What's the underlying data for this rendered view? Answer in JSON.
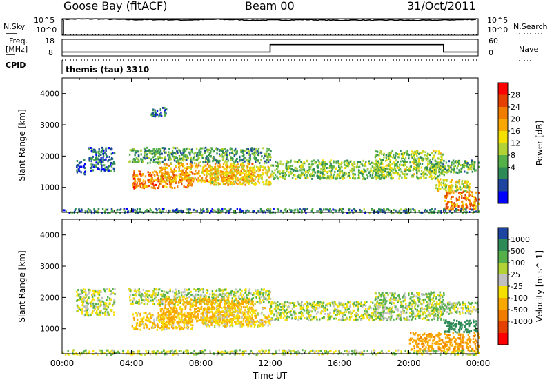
{
  "header": {
    "station": "Goose Bay (fitACF)",
    "beam": "Beam 00",
    "date": "31/Oct/2011"
  },
  "summary_labels": {
    "nsky": "N.Sky",
    "nsky_ticks": [
      "10^5",
      "10^0"
    ],
    "nsearch": "N.Search",
    "nsearch_ticks": [
      "10^5",
      "10^0"
    ],
    "freq": "Freq.",
    "freq_unit": "[MHz]",
    "freq_ticks": [
      "18",
      "8"
    ],
    "nave": "Nave",
    "nave_ticks": [
      "60",
      "0"
    ],
    "cpid": "CPID",
    "cpid_text": "themis (tau) 3310"
  },
  "chart_data": [
    {
      "type": "line",
      "title": "",
      "series": [
        {
          "name": "N.Sky",
          "x": [
            0,
            1,
            2,
            3,
            4,
            5,
            6,
            7,
            8,
            9,
            10,
            11,
            12,
            13,
            14,
            15,
            16,
            17,
            18,
            19,
            20,
            21,
            22,
            23,
            24
          ],
          "values": [
            4.8,
            4.9,
            4.9,
            4.8,
            4.7,
            4.7,
            4.7,
            4.6,
            4.7,
            4.8,
            4.7,
            4.5,
            4.6,
            4.6,
            4.7,
            4.6,
            4.5,
            4.6,
            4.5,
            4.6,
            4.5,
            4.5,
            4.6,
            4.7,
            4.8
          ]
        },
        {
          "name": "N.Search",
          "x": [
            0,
            24
          ],
          "values": [
            0,
            0
          ]
        }
      ],
      "xlim": [
        0,
        24
      ],
      "ylim": [
        0,
        5
      ]
    },
    {
      "type": "line",
      "title": "",
      "series": [
        {
          "name": "Freq.",
          "x": [
            0,
            12,
            12,
            22,
            22,
            24
          ],
          "values": [
            10.3,
            10.3,
            14.8,
            14.8,
            10.3,
            10.3
          ]
        },
        {
          "name": "Nave",
          "x": [
            0,
            24
          ],
          "values": [
            8,
            8
          ]
        }
      ],
      "xlim": [
        0,
        24
      ],
      "ylim": [
        8,
        18
      ]
    },
    {
      "type": "heatmap",
      "title": "",
      "ylabel": "Slant Range [km]",
      "colorbar_label": "Power [dB]",
      "colorbar_ticks": [
        "28",
        "24",
        "20",
        "16",
        "12",
        "8",
        "4"
      ],
      "colors": [
        "#0000ff",
        "#1e46a0",
        "#2e8b57",
        "#55b04a",
        "#b2d235",
        "#f5e000",
        "#f8a800",
        "#f07d00",
        "#e64000",
        "#ff0000"
      ],
      "xlim": [
        0,
        24
      ],
      "ylim": [
        200,
        4500
      ],
      "y_ticks": [
        "4000",
        "3000",
        "2000",
        "1000"
      ],
      "clusters": [
        {
          "x": [
            0.8,
            1.3
          ],
          "y": [
            1450,
            1900
          ],
          "value": 6
        },
        {
          "x": [
            1.5,
            3.0
          ],
          "y": [
            1550,
            2300
          ],
          "value": 7
        },
        {
          "x": [
            3.8,
            12.0
          ],
          "y": [
            1800,
            2300
          ],
          "value": 11
        },
        {
          "x": [
            4.0,
            7.5
          ],
          "y": [
            1000,
            1550
          ],
          "value": 23
        },
        {
          "x": [
            5.5,
            11.0
          ],
          "y": [
            1200,
            1800
          ],
          "value": 20
        },
        {
          "x": [
            8.5,
            12.0
          ],
          "y": [
            1100,
            1700
          ],
          "value": 18
        },
        {
          "x": [
            12.0,
            18.5
          ],
          "y": [
            1300,
            1900
          ],
          "value": 13
        },
        {
          "x": [
            18.0,
            22.0
          ],
          "y": [
            1300,
            2200
          ],
          "value": 14
        },
        {
          "x": [
            21.0,
            24.0
          ],
          "y": [
            1500,
            1900
          ],
          "value": 12
        },
        {
          "x": [
            22.0,
            24.0
          ],
          "y": [
            300,
            900
          ],
          "value": 22
        },
        {
          "x": [
            21.5,
            23.5
          ],
          "y": [
            900,
            1300
          ],
          "value": 16
        },
        {
          "x": [
            5.0,
            6.0
          ],
          "y": [
            3300,
            3600
          ],
          "value": 6
        },
        {
          "x": [
            0.0,
            24.0
          ],
          "y": [
            200,
            350
          ],
          "value": 9
        }
      ]
    },
    {
      "type": "heatmap",
      "title": "",
      "ylabel": "Slant Range [km]",
      "xlabel": "Time UT",
      "x_ticks": [
        "00:00",
        "04:00",
        "08:00",
        "12:00",
        "16:00",
        "20:00",
        "00:00"
      ],
      "y_ticks": [
        "4000",
        "3000",
        "2000",
        "1000"
      ],
      "colorbar_label": "Velocity [m s^-1]",
      "colorbar_ticks": [
        "1000",
        "500",
        "100",
        "25",
        "-25",
        "-100",
        "-500",
        "-1000"
      ],
      "colors": [
        "#1e46a0",
        "#2e8b57",
        "#55b04a",
        "#b2d235",
        "#c0c0c0",
        "#f5e000",
        "#f8a800",
        "#f07d00",
        "#e64000",
        "#ff0000"
      ],
      "xlim": [
        0,
        24
      ],
      "ylim": [
        200,
        4500
      ],
      "clusters": [
        {
          "x": [
            0.8,
            3.0
          ],
          "y": [
            1450,
            2300
          ],
          "value": 0
        },
        {
          "x": [
            3.8,
            12.0
          ],
          "y": [
            1800,
            2300
          ],
          "value": 0
        },
        {
          "x": [
            4.0,
            7.5
          ],
          "y": [
            1000,
            1550
          ],
          "value": -80
        },
        {
          "x": [
            5.5,
            11.0
          ],
          "y": [
            1200,
            2000
          ],
          "value": -150
        },
        {
          "x": [
            8.0,
            12.0
          ],
          "y": [
            1100,
            1700
          ],
          "value": -60
        },
        {
          "x": [
            12.0,
            18.5
          ],
          "y": [
            1300,
            1900
          ],
          "value": 0
        },
        {
          "x": [
            18.0,
            22.0
          ],
          "y": [
            1300,
            2200
          ],
          "value": 20
        },
        {
          "x": [
            21.0,
            24.0
          ],
          "y": [
            1500,
            1900
          ],
          "value": 0
        },
        {
          "x": [
            20.0,
            24.0
          ],
          "y": [
            300,
            900
          ],
          "value": -200
        },
        {
          "x": [
            22.0,
            24.0
          ],
          "y": [
            900,
            1300
          ],
          "value": 300
        },
        {
          "x": [
            0.0,
            24.0
          ],
          "y": [
            200,
            350
          ],
          "value": 0
        }
      ]
    }
  ]
}
